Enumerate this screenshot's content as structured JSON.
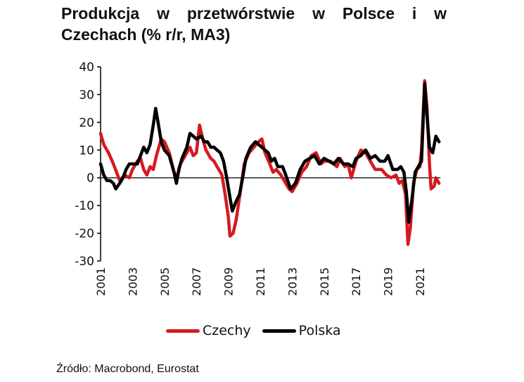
{
  "title_line1": "Produkcja w przetwórstwie w Polsce i w",
  "title_line2": "Czechach (% r/r, MA3)",
  "source": "Źródło: Macrobond, Eurostat",
  "colors": {
    "czechy": "#d7191f",
    "polska": "#000000",
    "axis": "#000000"
  },
  "chart_data": {
    "type": "line",
    "title": "Produkcja w przetwórstwie w Polsce i w Czechach (% r/r, MA3)",
    "xlabel": "",
    "ylabel": "% r/r",
    "ylim": [
      -30,
      40
    ],
    "yticks": [
      40,
      30,
      20,
      10,
      0,
      -10,
      -20,
      -30
    ],
    "xticks": [
      "2001",
      "2003",
      "2005",
      "2007",
      "2009",
      "2011",
      "2013",
      "2015",
      "2017",
      "2019",
      "2021"
    ],
    "xrange": [
      2001,
      2022.2
    ],
    "grid": false,
    "legend_position": "bottom",
    "series": [
      {
        "name": "Czechy",
        "color": "#d7191f",
        "points": [
          [
            2001.0,
            16
          ],
          [
            2001.2,
            12
          ],
          [
            2001.5,
            9
          ],
          [
            2001.8,
            5
          ],
          [
            2002.0,
            2
          ],
          [
            2002.2,
            -1
          ],
          [
            2002.5,
            1
          ],
          [
            2002.8,
            0
          ],
          [
            2003.0,
            3
          ],
          [
            2003.3,
            6
          ],
          [
            2003.5,
            7
          ],
          [
            2003.7,
            3
          ],
          [
            2003.9,
            1
          ],
          [
            2004.1,
            4
          ],
          [
            2004.3,
            3
          ],
          [
            2004.5,
            8
          ],
          [
            2004.8,
            14
          ],
          [
            2005.0,
            13
          ],
          [
            2005.3,
            9
          ],
          [
            2005.6,
            2
          ],
          [
            2005.8,
            0
          ],
          [
            2006.0,
            5
          ],
          [
            2006.3,
            8
          ],
          [
            2006.6,
            11
          ],
          [
            2006.8,
            8
          ],
          [
            2007.0,
            9
          ],
          [
            2007.2,
            19
          ],
          [
            2007.4,
            14
          ],
          [
            2007.6,
            10
          ],
          [
            2007.9,
            7
          ],
          [
            2008.1,
            6
          ],
          [
            2008.4,
            3
          ],
          [
            2008.6,
            1
          ],
          [
            2008.8,
            -6
          ],
          [
            2009.0,
            -14
          ],
          [
            2009.1,
            -21
          ],
          [
            2009.3,
            -20
          ],
          [
            2009.5,
            -15
          ],
          [
            2009.8,
            -3
          ],
          [
            2010.0,
            5
          ],
          [
            2010.3,
            9
          ],
          [
            2010.6,
            11
          ],
          [
            2010.9,
            13
          ],
          [
            2011.1,
            14
          ],
          [
            2011.3,
            9
          ],
          [
            2011.6,
            5
          ],
          [
            2011.8,
            2
          ],
          [
            2012.0,
            3
          ],
          [
            2012.3,
            1
          ],
          [
            2012.6,
            -2
          ],
          [
            2012.8,
            -4
          ],
          [
            2013.0,
            -5
          ],
          [
            2013.3,
            -2
          ],
          [
            2013.6,
            2
          ],
          [
            2013.9,
            4
          ],
          [
            2014.2,
            8
          ],
          [
            2014.5,
            9
          ],
          [
            2014.8,
            5
          ],
          [
            2015.0,
            6
          ],
          [
            2015.4,
            6
          ],
          [
            2015.8,
            4
          ],
          [
            2016.0,
            7
          ],
          [
            2016.3,
            4
          ],
          [
            2016.5,
            5
          ],
          [
            2016.7,
            0
          ],
          [
            2017.0,
            6
          ],
          [
            2017.3,
            10
          ],
          [
            2017.6,
            9
          ],
          [
            2017.9,
            6
          ],
          [
            2018.2,
            3
          ],
          [
            2018.6,
            3
          ],
          [
            2018.9,
            1
          ],
          [
            2019.2,
            0
          ],
          [
            2019.5,
            1
          ],
          [
            2019.7,
            -2
          ],
          [
            2019.9,
            -1
          ],
          [
            2020.1,
            -6
          ],
          [
            2020.25,
            -24
          ],
          [
            2020.4,
            -18
          ],
          [
            2020.6,
            -2
          ],
          [
            2020.8,
            3
          ],
          [
            2021.0,
            4
          ],
          [
            2021.1,
            10
          ],
          [
            2021.3,
            35
          ],
          [
            2021.45,
            25
          ],
          [
            2021.6,
            5
          ],
          [
            2021.7,
            -4
          ],
          [
            2021.9,
            -3
          ],
          [
            2022.0,
            0
          ],
          [
            2022.2,
            -2
          ]
        ]
      },
      {
        "name": "Polska",
        "color": "#000000",
        "points": [
          [
            2001.0,
            5
          ],
          [
            2001.2,
            1
          ],
          [
            2001.4,
            -1
          ],
          [
            2001.6,
            -1
          ],
          [
            2001.8,
            -2
          ],
          [
            2001.95,
            -4
          ],
          [
            2002.2,
            -2
          ],
          [
            2002.4,
            0
          ],
          [
            2002.6,
            3
          ],
          [
            2002.8,
            5
          ],
          [
            2003.0,
            5
          ],
          [
            2003.3,
            5
          ],
          [
            2003.5,
            8
          ],
          [
            2003.7,
            11
          ],
          [
            2003.9,
            9
          ],
          [
            2004.1,
            12
          ],
          [
            2004.3,
            19
          ],
          [
            2004.45,
            25
          ],
          [
            2004.6,
            20
          ],
          [
            2004.8,
            13
          ],
          [
            2005.0,
            10
          ],
          [
            2005.3,
            8
          ],
          [
            2005.6,
            2
          ],
          [
            2005.75,
            -2
          ],
          [
            2005.9,
            3
          ],
          [
            2006.1,
            7
          ],
          [
            2006.4,
            11
          ],
          [
            2006.6,
            16
          ],
          [
            2006.8,
            15
          ],
          [
            2007.0,
            14
          ],
          [
            2007.3,
            15
          ],
          [
            2007.5,
            13
          ],
          [
            2007.7,
            13
          ],
          [
            2007.9,
            11
          ],
          [
            2008.1,
            11
          ],
          [
            2008.3,
            10
          ],
          [
            2008.5,
            9
          ],
          [
            2008.7,
            6
          ],
          [
            2008.9,
            0
          ],
          [
            2009.1,
            -7
          ],
          [
            2009.25,
            -12
          ],
          [
            2009.45,
            -9
          ],
          [
            2009.7,
            -6
          ],
          [
            2009.9,
            0
          ],
          [
            2010.1,
            7
          ],
          [
            2010.4,
            11
          ],
          [
            2010.7,
            13
          ],
          [
            2010.9,
            12
          ],
          [
            2011.1,
            11
          ],
          [
            2011.3,
            10
          ],
          [
            2011.5,
            9
          ],
          [
            2011.7,
            6
          ],
          [
            2011.9,
            7
          ],
          [
            2012.1,
            4
          ],
          [
            2012.4,
            4
          ],
          [
            2012.6,
            1
          ],
          [
            2012.9,
            -4
          ],
          [
            2013.2,
            -2
          ],
          [
            2013.5,
            3
          ],
          [
            2013.8,
            6
          ],
          [
            2014.1,
            7
          ],
          [
            2014.4,
            8
          ],
          [
            2014.7,
            5
          ],
          [
            2015.0,
            7
          ],
          [
            2015.3,
            6
          ],
          [
            2015.6,
            5
          ],
          [
            2015.9,
            7
          ],
          [
            2016.2,
            5
          ],
          [
            2016.5,
            5
          ],
          [
            2016.8,
            4
          ],
          [
            2017.0,
            7
          ],
          [
            2017.3,
            8
          ],
          [
            2017.6,
            10
          ],
          [
            2017.9,
            7
          ],
          [
            2018.2,
            8
          ],
          [
            2018.5,
            6
          ],
          [
            2018.8,
            6
          ],
          [
            2019.0,
            8
          ],
          [
            2019.3,
            3
          ],
          [
            2019.6,
            3
          ],
          [
            2019.8,
            4
          ],
          [
            2020.0,
            2
          ],
          [
            2020.15,
            -5
          ],
          [
            2020.3,
            -16
          ],
          [
            2020.5,
            -8
          ],
          [
            2020.7,
            2
          ],
          [
            2020.9,
            4
          ],
          [
            2021.1,
            6
          ],
          [
            2021.3,
            34
          ],
          [
            2021.45,
            22
          ],
          [
            2021.6,
            11
          ],
          [
            2021.8,
            9
          ],
          [
            2022.0,
            15
          ],
          [
            2022.2,
            13
          ]
        ]
      }
    ]
  },
  "legend": [
    {
      "label": "Czechy",
      "color": "#d7191f"
    },
    {
      "label": "Polska",
      "color": "#000000"
    }
  ]
}
